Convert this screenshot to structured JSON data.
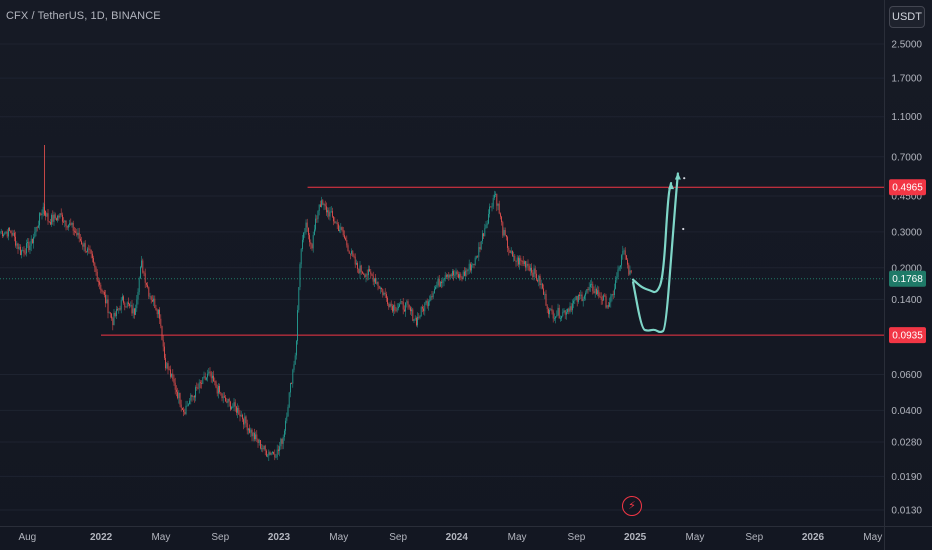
{
  "header": {
    "symbol_title": "CFX / TetherUS, 1D, BINANCE",
    "currency": "USDT"
  },
  "colors": {
    "background": "#131722",
    "up": "#26a69a",
    "down": "#ef5350",
    "level_line": "#f23645",
    "drawing": "#7fd6c8",
    "current_price": "#1f7a68"
  },
  "icons": {
    "alert": "lightning-bolt-icon"
  },
  "chart_data": {
    "type": "candlestick",
    "y_scale": "log",
    "y_ticks": [
      "2.5000",
      "1.7000",
      "1.1000",
      "0.7000",
      "0.4500",
      "0.3000",
      "0.2000",
      "0.1400",
      "0.0600",
      "0.0400",
      "0.0280",
      "0.0190",
      "0.0130"
    ],
    "x_ticks": [
      "Aug",
      "2022",
      "May",
      "Sep",
      "2023",
      "May",
      "Sep",
      "2024",
      "May",
      "Sep",
      "2025",
      "May",
      "Sep",
      "2026",
      "May"
    ],
    "price_labels": [
      {
        "value": "0.4965",
        "kind": "resistance"
      },
      {
        "value": "0.1768",
        "kind": "current"
      },
      {
        "value": "0.0935",
        "kind": "support"
      }
    ],
    "horizontal_levels": [
      {
        "price": 0.4965,
        "from": "2023-03",
        "to": "end"
      },
      {
        "price": 0.0935,
        "from": "2022-01",
        "to": "end"
      }
    ],
    "price_path": [
      [
        "2021-07-01",
        0.3
      ],
      [
        "2021-07-20",
        0.24
      ],
      [
        "2021-08-10",
        0.26
      ],
      [
        "2021-09-05",
        0.4
      ],
      [
        "2021-09-15",
        0.34
      ],
      [
        "2021-10-10",
        0.36
      ],
      [
        "2021-11-05",
        0.31
      ],
      [
        "2021-12-10",
        0.23
      ],
      [
        "2022-01-05",
        0.15
      ],
      [
        "2022-01-25",
        0.11
      ],
      [
        "2022-02-15",
        0.14
      ],
      [
        "2022-03-10",
        0.12
      ],
      [
        "2022-03-25",
        0.21
      ],
      [
        "2022-04-10",
        0.15
      ],
      [
        "2022-05-01",
        0.12
      ],
      [
        "2022-05-12",
        0.07
      ],
      [
        "2022-06-05",
        0.05
      ],
      [
        "2022-06-20",
        0.04
      ],
      [
        "2022-07-15",
        0.05
      ],
      [
        "2022-08-10",
        0.06
      ],
      [
        "2022-09-10",
        0.045
      ],
      [
        "2022-10-10",
        0.04
      ],
      [
        "2022-11-10",
        0.03
      ],
      [
        "2022-12-05",
        0.025
      ],
      [
        "2022-12-30",
        0.025
      ],
      [
        "2023-01-10",
        0.03
      ],
      [
        "2023-02-05",
        0.08
      ],
      [
        "2023-02-14",
        0.23
      ],
      [
        "2023-02-25",
        0.32
      ],
      [
        "2023-03-10",
        0.26
      ],
      [
        "2023-03-25",
        0.42
      ],
      [
        "2023-04-15",
        0.37
      ],
      [
        "2023-05-10",
        0.3
      ],
      [
        "2023-06-10",
        0.2
      ],
      [
        "2023-07-15",
        0.18
      ],
      [
        "2023-08-20",
        0.13
      ],
      [
        "2023-09-20",
        0.13
      ],
      [
        "2023-10-10",
        0.11
      ],
      [
        "2023-11-10",
        0.15
      ],
      [
        "2023-12-10",
        0.19
      ],
      [
        "2024-01-10",
        0.18
      ],
      [
        "2024-02-10",
        0.22
      ],
      [
        "2024-03-10",
        0.4
      ],
      [
        "2024-03-20",
        0.47
      ],
      [
        "2024-04-05",
        0.3
      ],
      [
        "2024-04-25",
        0.22
      ],
      [
        "2024-05-25",
        0.21
      ],
      [
        "2024-06-20",
        0.17
      ],
      [
        "2024-07-10",
        0.12
      ],
      [
        "2024-08-05",
        0.12
      ],
      [
        "2024-09-05",
        0.14
      ],
      [
        "2024-10-05",
        0.16
      ],
      [
        "2024-11-10",
        0.13
      ],
      [
        "2024-12-08",
        0.24
      ],
      [
        "2024-12-25",
        0.1768
      ]
    ],
    "projections": [
      [
        [
          "2024-12-28",
          0.17
        ],
        [
          "2025-01-15",
          0.1
        ],
        [
          "2025-01-28",
          0.098
        ],
        [
          "2025-02-10",
          0.1
        ],
        [
          "2025-02-22",
          0.096
        ],
        [
          "2025-03-05",
          0.1
        ],
        [
          "2025-03-20",
          0.3
        ],
        [
          "2025-03-30",
          0.58
        ]
      ],
      [
        [
          "2024-12-28",
          0.175
        ],
        [
          "2025-01-15",
          0.16
        ],
        [
          "2025-02-01",
          0.155
        ],
        [
          "2025-02-15",
          0.15
        ],
        [
          "2025-02-28",
          0.18
        ],
        [
          "2025-03-10",
          0.45
        ],
        [
          "2025-03-16",
          0.52
        ]
      ]
    ]
  }
}
